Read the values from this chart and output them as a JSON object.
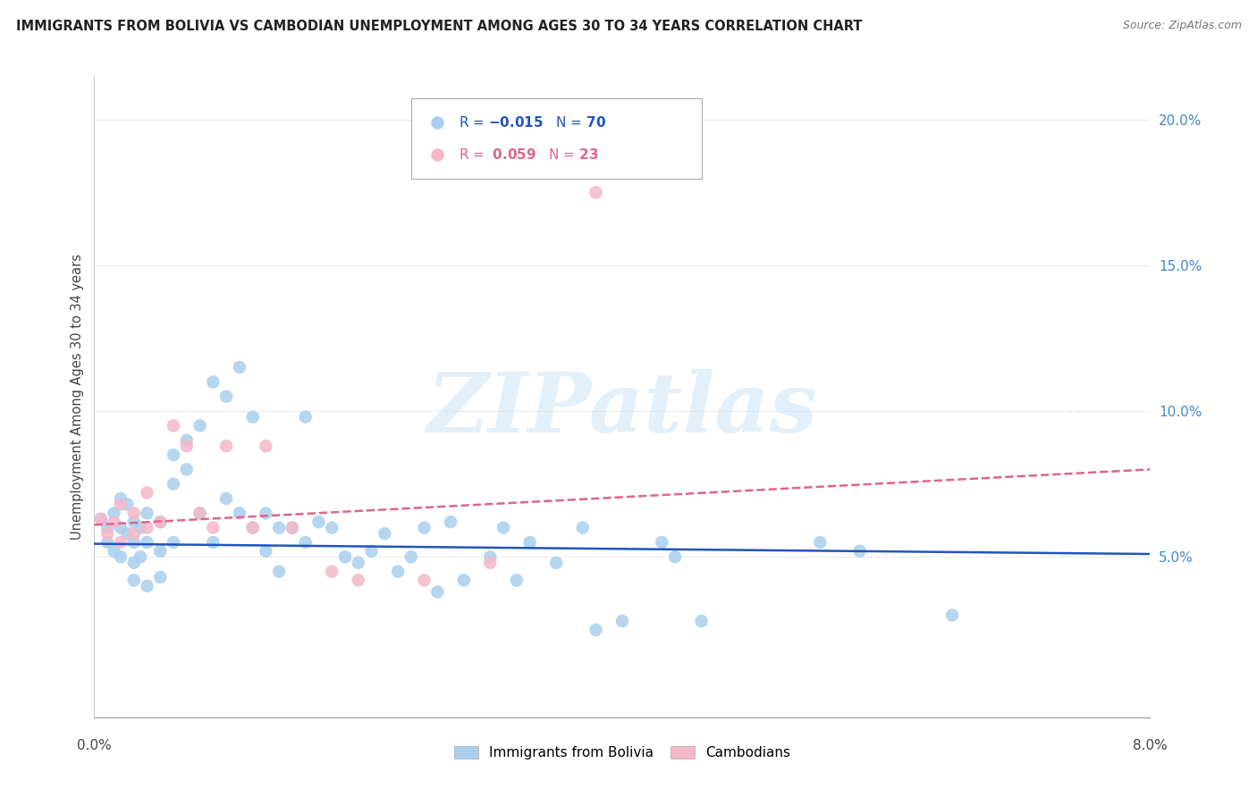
{
  "title": "IMMIGRANTS FROM BOLIVIA VS CAMBODIAN UNEMPLOYMENT AMONG AGES 30 TO 34 YEARS CORRELATION CHART",
  "source": "Source: ZipAtlas.com",
  "ylabel": "Unemployment Among Ages 30 to 34 years",
  "ytick_labels": [
    "5.0%",
    "10.0%",
    "15.0%",
    "20.0%"
  ],
  "ytick_values": [
    0.05,
    0.1,
    0.15,
    0.2
  ],
  "xmin": 0.0,
  "xmax": 0.08,
  "ymin": -0.005,
  "ymax": 0.215,
  "watermark_text": "ZIPatlas",
  "R_bolivia": -0.015,
  "N_bolivia": 70,
  "R_cambodian": 0.059,
  "N_cambodian": 23,
  "color_bolivia": "#aacfee",
  "color_cambodian": "#f5b8c8",
  "trendline_bolivia_color": "#2255bb",
  "trendline_cambodian_color": "#dd6688",
  "bolivia_x": [
    0.0005,
    0.001,
    0.001,
    0.0015,
    0.0015,
    0.002,
    0.002,
    0.002,
    0.0025,
    0.0025,
    0.003,
    0.003,
    0.003,
    0.003,
    0.0035,
    0.0035,
    0.004,
    0.004,
    0.004,
    0.005,
    0.005,
    0.005,
    0.006,
    0.006,
    0.006,
    0.007,
    0.007,
    0.008,
    0.008,
    0.009,
    0.009,
    0.01,
    0.01,
    0.011,
    0.011,
    0.012,
    0.012,
    0.013,
    0.013,
    0.014,
    0.014,
    0.015,
    0.016,
    0.016,
    0.017,
    0.018,
    0.019,
    0.02,
    0.021,
    0.022,
    0.023,
    0.024,
    0.025,
    0.026,
    0.027,
    0.028,
    0.03,
    0.031,
    0.032,
    0.033,
    0.035,
    0.037,
    0.038,
    0.04,
    0.043,
    0.044,
    0.046,
    0.055,
    0.058,
    0.065
  ],
  "bolivia_y": [
    0.063,
    0.06,
    0.055,
    0.065,
    0.052,
    0.07,
    0.06,
    0.05,
    0.068,
    0.058,
    0.062,
    0.055,
    0.048,
    0.042,
    0.06,
    0.05,
    0.065,
    0.055,
    0.04,
    0.062,
    0.052,
    0.043,
    0.085,
    0.075,
    0.055,
    0.09,
    0.08,
    0.095,
    0.065,
    0.11,
    0.055,
    0.105,
    0.07,
    0.115,
    0.065,
    0.098,
    0.06,
    0.065,
    0.052,
    0.06,
    0.045,
    0.06,
    0.098,
    0.055,
    0.062,
    0.06,
    0.05,
    0.048,
    0.052,
    0.058,
    0.045,
    0.05,
    0.06,
    0.038,
    0.062,
    0.042,
    0.05,
    0.06,
    0.042,
    0.055,
    0.048,
    0.06,
    0.025,
    0.028,
    0.055,
    0.05,
    0.028,
    0.055,
    0.052,
    0.03
  ],
  "cambodian_x": [
    0.0005,
    0.001,
    0.0015,
    0.002,
    0.002,
    0.003,
    0.003,
    0.004,
    0.004,
    0.005,
    0.006,
    0.007,
    0.008,
    0.009,
    0.01,
    0.012,
    0.013,
    0.015,
    0.018,
    0.02,
    0.025,
    0.03,
    0.038
  ],
  "cambodian_y": [
    0.063,
    0.058,
    0.062,
    0.068,
    0.055,
    0.065,
    0.058,
    0.072,
    0.06,
    0.062,
    0.095,
    0.088,
    0.065,
    0.06,
    0.088,
    0.06,
    0.088,
    0.06,
    0.045,
    0.042,
    0.042,
    0.048,
    0.175
  ],
  "bolivia_trend_y0": 0.0545,
  "bolivia_trend_y1": 0.051,
  "cambodian_trend_y0": 0.061,
  "cambodian_trend_y1": 0.08
}
